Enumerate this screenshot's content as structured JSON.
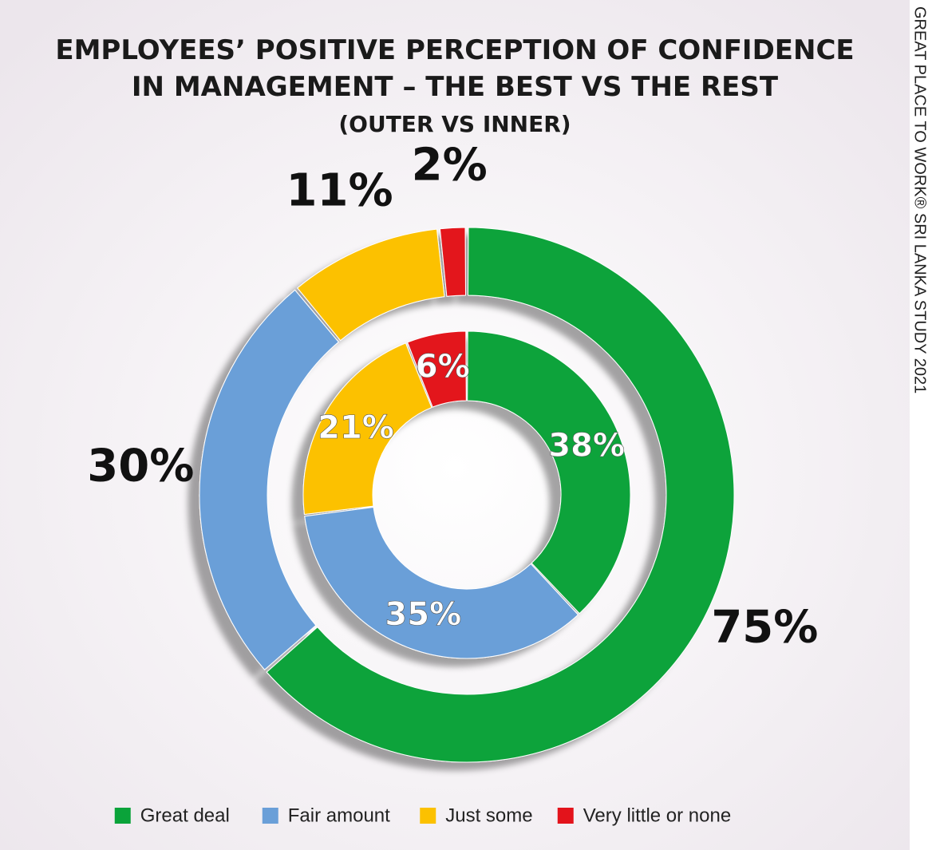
{
  "chart_data": {
    "type": "donut",
    "title": "EMPLOYEES’ POSITIVE PERCEPTION OF CONFIDENCE IN MANAGEMENT – THE BEST VS THE REST",
    "subtitle": "(OUTER VS  INNER)",
    "source": "GREAT PLACE TO WORK® SRI LANKA STUDY 2021",
    "categories": [
      "Great deal",
      "Fair amount",
      "Just some",
      "Very little or none"
    ],
    "colors": [
      "#0aa33a",
      "#6a9fd8",
      "#fcc100",
      "#e3131b"
    ],
    "series": [
      {
        "values": [
          75,
          30,
          11,
          2
        ],
        "value_labels": [
          "75%",
          "30%",
          "11%",
          "2%"
        ]
      },
      {
        "values": [
          38,
          35,
          21,
          6
        ],
        "value_labels": [
          "38%",
          "35%",
          "21%",
          "6%"
        ]
      }
    ]
  }
}
